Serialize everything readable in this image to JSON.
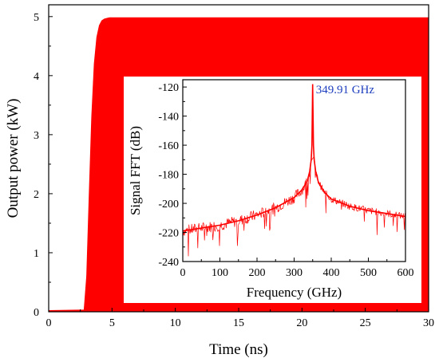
{
  "chart_data": [
    {
      "type": "area",
      "xlabel": "Time (ns)",
      "ylabel": "Output power (kW)",
      "xlim": [
        0,
        30
      ],
      "ylim": [
        0,
        5.2
      ],
      "xticks": [
        0,
        5,
        10,
        15,
        20,
        25,
        30
      ],
      "yticks": [
        0,
        1,
        2,
        3,
        4,
        5
      ],
      "color": "#ff0000",
      "series": [
        {
          "x": [
            0,
            2.8,
            3.0,
            3.2,
            3.4,
            3.6,
            3.8,
            4.0,
            4.2,
            4.4,
            4.6,
            4.8,
            30
          ],
          "upper": [
            0.02,
            0.03,
            0.6,
            2.0,
            3.3,
            4.2,
            4.65,
            4.85,
            4.93,
            4.96,
            4.97,
            4.98,
            4.98
          ],
          "lower": [
            0,
            0,
            0,
            0,
            0,
            0,
            0,
            0,
            0,
            0,
            0,
            0,
            0
          ]
        }
      ]
    },
    {
      "type": "line",
      "xlabel": "Frequency (GHz)",
      "ylabel": "Signal FFT (dB)",
      "xlim": [
        0,
        600
      ],
      "ylim": [
        -240,
        -115
      ],
      "xticks": [
        0,
        100,
        200,
        300,
        400,
        500,
        600
      ],
      "yticks": [
        -240,
        -220,
        -200,
        -180,
        -160,
        -140,
        -120
      ],
      "color": "#ff0000",
      "annotations": [
        {
          "text": "349.91 GHz",
          "x": 349.91,
          "y": -120,
          "color": "#1f3fbf"
        }
      ],
      "series": [
        {
          "x": [
            0,
            50,
            100,
            150,
            200,
            250,
            300,
            320,
            335,
            342,
            346,
            348,
            349.91,
            352,
            354,
            358,
            365,
            380,
            400,
            450,
            500,
            550,
            600
          ],
          "y": [
            -219,
            -217,
            -215,
            -212,
            -208,
            -203,
            -196,
            -191,
            -185,
            -178,
            -170,
            -160,
            -118,
            -160,
            -170,
            -178,
            -185,
            -192,
            -197,
            -202,
            -205,
            -207,
            -209
          ]
        }
      ]
    }
  ]
}
